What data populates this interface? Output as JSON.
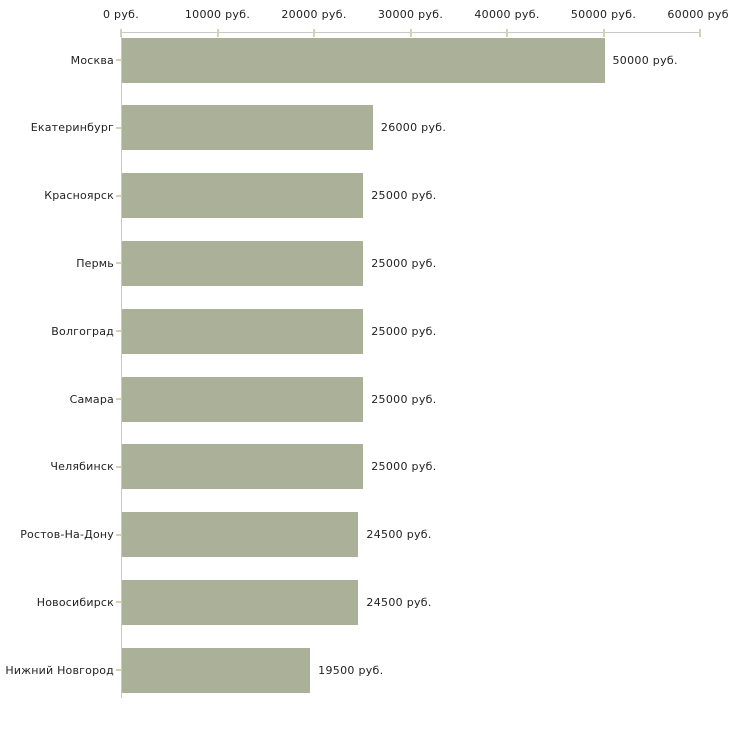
{
  "chart_data": {
    "type": "bar",
    "orientation": "horizontal",
    "title": "",
    "xlabel": "",
    "ylabel": "",
    "grid": false,
    "legend": "none",
    "categories": [
      "Москва",
      "Екатеринбург",
      "Красноярск",
      "Пермь",
      "Волгоград",
      "Самара",
      "Челябинск",
      "Ростов-На-Дону",
      "Новосибирск",
      "Нижний Новгород"
    ],
    "values": [
      50000,
      26000,
      25000,
      25000,
      25000,
      25000,
      25000,
      24500,
      24500,
      19500
    ],
    "value_labels": [
      "50000 руб.",
      "26000 руб.",
      "25000 руб.",
      "25000 руб.",
      "25000 руб.",
      "25000 руб.",
      "25000 руб.",
      "24500 руб.",
      "24500 руб.",
      "19500 руб."
    ],
    "x_axis": {
      "position": "top",
      "min": 0,
      "max": 60000,
      "tick_step": 10000,
      "tick_labels": [
        "0 руб.",
        "10000 руб.",
        "20000 руб.",
        "30000 руб.",
        "40000 руб.",
        "50000 руб.",
        "60000 руб."
      ]
    },
    "colors": {
      "bar": "#abb098",
      "axis_line": "#c9c9c9",
      "tick": "#d5d2b0",
      "text": "#222222",
      "background": "#ffffff"
    }
  }
}
